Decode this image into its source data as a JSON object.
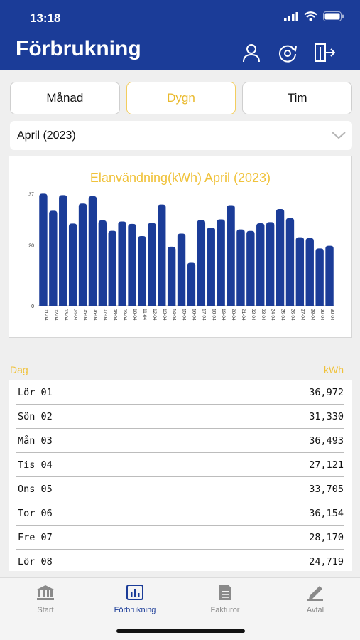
{
  "status": {
    "time": "13:18"
  },
  "header": {
    "title": "Förbrukning",
    "icons": [
      "user-icon",
      "refresh-icon",
      "logout-icon"
    ]
  },
  "tabs": [
    {
      "label": "Månad",
      "active": false
    },
    {
      "label": "Dygn",
      "active": true
    },
    {
      "label": "Tim",
      "active": false
    }
  ],
  "month_select": {
    "value": "April (2023)"
  },
  "chart_data": {
    "type": "bar",
    "title": "Elanvändning(kWh) April (2023)",
    "categories": [
      "01-04",
      "02-04",
      "03-04",
      "04-04",
      "05-04",
      "06-04",
      "07-04",
      "08-04",
      "09-04",
      "10-04",
      "11-04",
      "12-04",
      "13-04",
      "14-04",
      "15-04",
      "16-04",
      "17-04",
      "18-04",
      "19-04",
      "20-04",
      "21-04",
      "22-04",
      "23-04",
      "24-04",
      "25-04",
      "26-04",
      "27-04",
      "28-04",
      "29-04",
      "30-04"
    ],
    "values": [
      36.972,
      31.33,
      36.493,
      27.121,
      33.705,
      36.154,
      28.17,
      24.719,
      27.8,
      27.0,
      23.0,
      27.3,
      33.4,
      19.5,
      23.8,
      14.2,
      28.3,
      25.8,
      28.5,
      33.2,
      25.2,
      24.7,
      27.2,
      27.6,
      31.9,
      28.9,
      22.6,
      22.3,
      18.9,
      19.8
    ],
    "yticks": [
      0,
      20,
      37
    ],
    "ylim": [
      0,
      38
    ],
    "color": "#1b3c98"
  },
  "list": {
    "header_left": "Dag",
    "header_right": "kWh",
    "rows": [
      {
        "day": "Lör 01",
        "value": "36,972"
      },
      {
        "day": "Sön 02",
        "value": "31,330"
      },
      {
        "day": "Mån 03",
        "value": "36,493"
      },
      {
        "day": "Tis 04",
        "value": "27,121"
      },
      {
        "day": "Ons 05",
        "value": "33,705"
      },
      {
        "day": "Tor 06",
        "value": "36,154"
      },
      {
        "day": "Fre 07",
        "value": "28,170"
      },
      {
        "day": "Lör 08",
        "value": "24,719"
      }
    ]
  },
  "bottom_nav": [
    {
      "label": "Start",
      "icon": "bank-icon",
      "active": false
    },
    {
      "label": "Förbrukning",
      "icon": "bar-chart-icon",
      "active": true
    },
    {
      "label": "Fakturor",
      "icon": "document-icon",
      "active": false
    },
    {
      "label": "Avtal",
      "icon": "pen-icon",
      "active": false
    }
  ],
  "colors": {
    "brand": "#1b3c98",
    "accent": "#f0c23a"
  }
}
